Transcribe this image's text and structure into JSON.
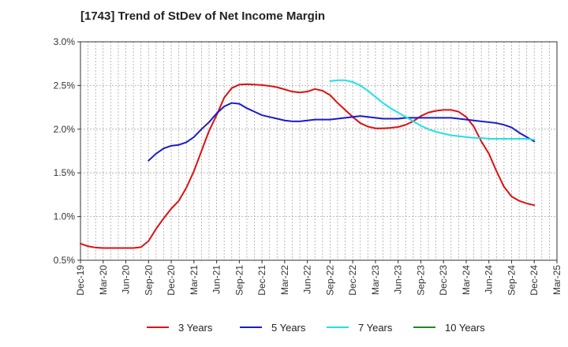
{
  "chart_data": {
    "type": "line",
    "title": "[1743]  Trend of StDev of Net Income Margin",
    "xlabel": "",
    "ylabel": "",
    "y_unit": "%",
    "ylim": [
      0.5,
      3.0
    ],
    "yticks": [
      0.5,
      1.0,
      1.5,
      2.0,
      2.5,
      3.0
    ],
    "ytick_labels": [
      "0.5%",
      "1.0%",
      "1.5%",
      "2.0%",
      "2.5%",
      "3.0%"
    ],
    "x_start": "Dec-19",
    "x_end": "Mar-25",
    "xtick_labels": [
      "Dec-19",
      "Mar-20",
      "Jun-20",
      "Sep-20",
      "Dec-20",
      "Mar-21",
      "Jun-21",
      "Sep-21",
      "Dec-21",
      "Mar-22",
      "Jun-22",
      "Sep-22",
      "Dec-22",
      "Mar-23",
      "Jun-23",
      "Sep-23",
      "Dec-23",
      "Mar-24",
      "Jun-24",
      "Sep-24",
      "Dec-24",
      "Mar-25"
    ],
    "grid": true,
    "legend_position": "bottom",
    "series": [
      {
        "name": "3 Years",
        "color": "#dd1111",
        "points": [
          [
            "Dec-19",
            0.69
          ],
          [
            "Jan-20",
            0.66
          ],
          [
            "Feb-20",
            0.645
          ],
          [
            "Mar-20",
            0.64
          ],
          [
            "Apr-20",
            0.64
          ],
          [
            "May-20",
            0.64
          ],
          [
            "Jun-20",
            0.64
          ],
          [
            "Jul-20",
            0.64
          ],
          [
            "Aug-20",
            0.65
          ],
          [
            "Sep-20",
            0.72
          ],
          [
            "Oct-20",
            0.86
          ],
          [
            "Nov-20",
            0.98
          ],
          [
            "Dec-20",
            1.09
          ],
          [
            "Jan-21",
            1.18
          ],
          [
            "Feb-21",
            1.33
          ],
          [
            "Mar-21",
            1.52
          ],
          [
            "Apr-21",
            1.75
          ],
          [
            "May-21",
            1.98
          ],
          [
            "Jun-21",
            2.16
          ],
          [
            "Jul-21",
            2.36
          ],
          [
            "Aug-21",
            2.47
          ],
          [
            "Sep-21",
            2.51
          ],
          [
            "Oct-21",
            2.515
          ],
          [
            "Nov-21",
            2.51
          ],
          [
            "Dec-21",
            2.505
          ],
          [
            "Jan-22",
            2.495
          ],
          [
            "Feb-22",
            2.48
          ],
          [
            "Mar-22",
            2.455
          ],
          [
            "Apr-22",
            2.43
          ],
          [
            "May-22",
            2.42
          ],
          [
            "Jun-22",
            2.43
          ],
          [
            "Jul-22",
            2.46
          ],
          [
            "Aug-22",
            2.44
          ],
          [
            "Sep-22",
            2.39
          ],
          [
            "Oct-22",
            2.3
          ],
          [
            "Nov-22",
            2.22
          ],
          [
            "Dec-22",
            2.14
          ],
          [
            "Jan-23",
            2.07
          ],
          [
            "Feb-23",
            2.03
          ],
          [
            "Mar-23",
            2.01
          ],
          [
            "Apr-23",
            2.01
          ],
          [
            "May-23",
            2.015
          ],
          [
            "Jun-23",
            2.025
          ],
          [
            "Jul-23",
            2.05
          ],
          [
            "Aug-23",
            2.09
          ],
          [
            "Sep-23",
            2.15
          ],
          [
            "Oct-23",
            2.19
          ],
          [
            "Nov-23",
            2.21
          ],
          [
            "Dec-23",
            2.22
          ],
          [
            "Jan-24",
            2.22
          ],
          [
            "Feb-24",
            2.2
          ],
          [
            "Mar-24",
            2.14
          ],
          [
            "Apr-24",
            2.03
          ],
          [
            "May-24",
            1.86
          ],
          [
            "Jun-24",
            1.72
          ],
          [
            "Jul-24",
            1.52
          ],
          [
            "Aug-24",
            1.34
          ],
          [
            "Sep-24",
            1.23
          ],
          [
            "Oct-24",
            1.18
          ],
          [
            "Nov-24",
            1.15
          ],
          [
            "Dec-24",
            1.13
          ]
        ]
      },
      {
        "name": "5 Years",
        "color": "#1a1acc",
        "points": [
          [
            "Sep-20",
            1.64
          ],
          [
            "Oct-20",
            1.72
          ],
          [
            "Nov-20",
            1.78
          ],
          [
            "Dec-20",
            1.81
          ],
          [
            "Jan-21",
            1.82
          ],
          [
            "Feb-21",
            1.85
          ],
          [
            "Mar-21",
            1.91
          ],
          [
            "Apr-21",
            2.0
          ],
          [
            "May-21",
            2.08
          ],
          [
            "Jun-21",
            2.18
          ],
          [
            "Jul-21",
            2.26
          ],
          [
            "Aug-21",
            2.3
          ],
          [
            "Sep-21",
            2.29
          ],
          [
            "Oct-21",
            2.24
          ],
          [
            "Nov-21",
            2.2
          ],
          [
            "Dec-21",
            2.16
          ],
          [
            "Jan-22",
            2.14
          ],
          [
            "Feb-22",
            2.12
          ],
          [
            "Mar-22",
            2.1
          ],
          [
            "Apr-22",
            2.09
          ],
          [
            "May-22",
            2.09
          ],
          [
            "Jun-22",
            2.1
          ],
          [
            "Jul-22",
            2.11
          ],
          [
            "Aug-22",
            2.11
          ],
          [
            "Sep-22",
            2.11
          ],
          [
            "Oct-22",
            2.12
          ],
          [
            "Nov-22",
            2.13
          ],
          [
            "Dec-22",
            2.14
          ],
          [
            "Jan-23",
            2.15
          ],
          [
            "Feb-23",
            2.14
          ],
          [
            "Mar-23",
            2.13
          ],
          [
            "Apr-23",
            2.12
          ],
          [
            "May-23",
            2.12
          ],
          [
            "Jun-23",
            2.12
          ],
          [
            "Jul-23",
            2.13
          ],
          [
            "Aug-23",
            2.13
          ],
          [
            "Sep-23",
            2.13
          ],
          [
            "Oct-23",
            2.13
          ],
          [
            "Nov-23",
            2.13
          ],
          [
            "Dec-23",
            2.13
          ],
          [
            "Jan-24",
            2.13
          ],
          [
            "Feb-24",
            2.12
          ],
          [
            "Mar-24",
            2.11
          ],
          [
            "Apr-24",
            2.1
          ],
          [
            "May-24",
            2.09
          ],
          [
            "Jun-24",
            2.08
          ],
          [
            "Jul-24",
            2.07
          ],
          [
            "Aug-24",
            2.05
          ],
          [
            "Sep-24",
            2.02
          ],
          [
            "Oct-24",
            1.96
          ],
          [
            "Nov-24",
            1.91
          ],
          [
            "Dec-24",
            1.86
          ]
        ]
      },
      {
        "name": "7 Years",
        "color": "#22e0e8",
        "points": [
          [
            "Sep-22",
            2.55
          ],
          [
            "Oct-22",
            2.56
          ],
          [
            "Nov-22",
            2.56
          ],
          [
            "Dec-22",
            2.54
          ],
          [
            "Jan-23",
            2.5
          ],
          [
            "Feb-23",
            2.44
          ],
          [
            "Mar-23",
            2.37
          ],
          [
            "Apr-23",
            2.3
          ],
          [
            "May-23",
            2.24
          ],
          [
            "Jun-23",
            2.19
          ],
          [
            "Jul-23",
            2.14
          ],
          [
            "Aug-23",
            2.09
          ],
          [
            "Sep-23",
            2.04
          ],
          [
            "Oct-23",
            2.0
          ],
          [
            "Nov-23",
            1.97
          ],
          [
            "Dec-23",
            1.95
          ],
          [
            "Jan-24",
            1.93
          ],
          [
            "Feb-24",
            1.92
          ],
          [
            "Mar-24",
            1.91
          ],
          [
            "Apr-24",
            1.9
          ],
          [
            "May-24",
            1.9
          ],
          [
            "Jun-24",
            1.89
          ],
          [
            "Jul-24",
            1.89
          ],
          [
            "Aug-24",
            1.89
          ],
          [
            "Sep-24",
            1.89
          ],
          [
            "Oct-24",
            1.89
          ],
          [
            "Nov-24",
            1.89
          ],
          [
            "Dec-24",
            1.88
          ]
        ]
      },
      {
        "name": "10 Years",
        "color": "#228822",
        "points": []
      }
    ]
  }
}
